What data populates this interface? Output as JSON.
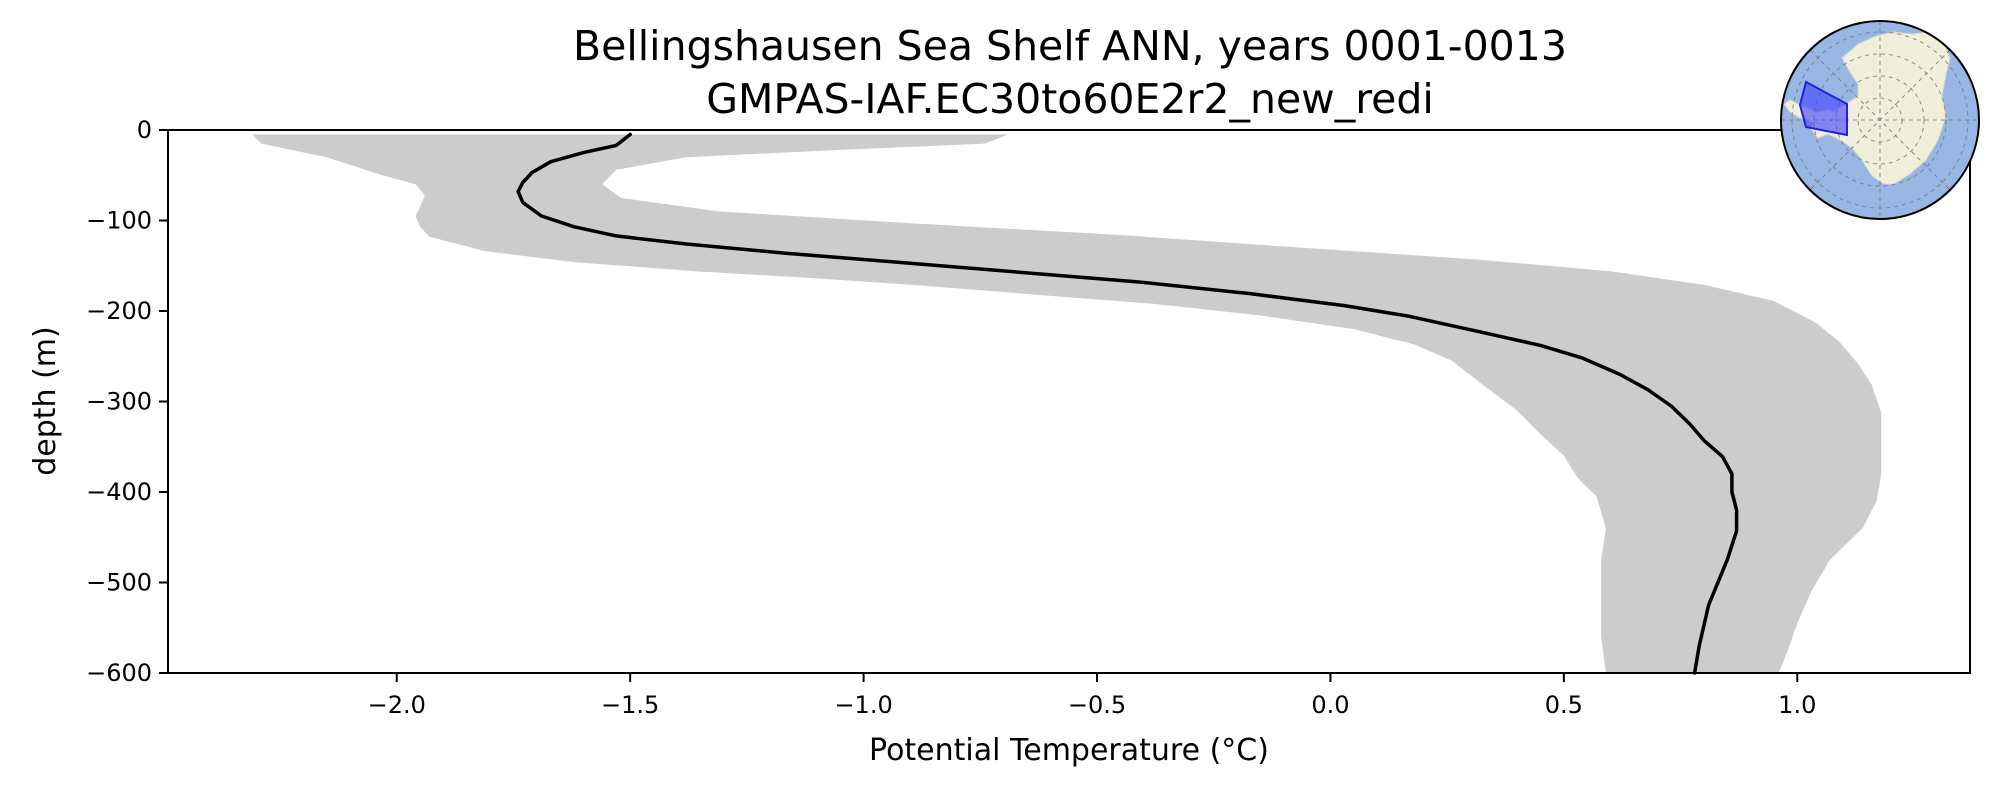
{
  "chart_data": {
    "type": "line",
    "title": "Bellingshausen Sea Shelf ANN, years 0001-0013",
    "subtitle": "GMPAS-IAF.EC30to60E2r2_new_redi",
    "xlabel": "Potential Temperature (°C)",
    "ylabel": "depth (m)",
    "xlim": [
      -2.49,
      1.37
    ],
    "ylim": [
      -600,
      0
    ],
    "x_ticks": [
      -2.0,
      -1.5,
      -1.0,
      -0.5,
      0.0,
      0.5,
      1.0
    ],
    "x_tick_labels": [
      "−2.0",
      "−1.5",
      "−1.0",
      "−0.5",
      "0.0",
      "0.5",
      "1.0"
    ],
    "y_ticks": [
      0,
      -100,
      -200,
      -300,
      -400,
      -500,
      -600
    ],
    "y_tick_labels": [
      "0",
      "−100",
      "−200",
      "−300",
      "−400",
      "−500",
      "−600"
    ],
    "grid": false,
    "legend": "none",
    "series": [
      {
        "kind": "mean-profile",
        "color": "#000000",
        "points": [
          [
            -1.5,
            -5
          ],
          [
            -1.53,
            -17
          ],
          [
            -1.6,
            -25
          ],
          [
            -1.67,
            -35
          ],
          [
            -1.71,
            -47
          ],
          [
            -1.73,
            -58
          ],
          [
            -1.74,
            -68
          ],
          [
            -1.73,
            -80
          ],
          [
            -1.69,
            -95
          ],
          [
            -1.62,
            -107
          ],
          [
            -1.53,
            -117
          ],
          [
            -1.38,
            -126
          ],
          [
            -1.17,
            -136
          ],
          [
            -0.93,
            -146
          ],
          [
            -0.67,
            -157
          ],
          [
            -0.41,
            -168
          ],
          [
            -0.17,
            -181
          ],
          [
            0.03,
            -194
          ],
          [
            0.17,
            -206
          ],
          [
            0.32,
            -223
          ],
          [
            0.45,
            -238
          ],
          [
            0.54,
            -252
          ],
          [
            0.62,
            -270
          ],
          [
            0.68,
            -287
          ],
          [
            0.73,
            -305
          ],
          [
            0.77,
            -325
          ],
          [
            0.8,
            -343
          ],
          [
            0.84,
            -361
          ],
          [
            0.86,
            -380
          ],
          [
            0.86,
            -400
          ],
          [
            0.87,
            -420
          ],
          [
            0.87,
            -443
          ],
          [
            0.85,
            -475
          ],
          [
            0.81,
            -525
          ],
          [
            0.79,
            -570
          ],
          [
            0.78,
            -600
          ]
        ]
      }
    ],
    "band": {
      "kind": "spread",
      "color": "#cccccc",
      "left": [
        [
          -2.31,
          -5
        ],
        [
          -2.29,
          -15
        ],
        [
          -2.15,
          -30
        ],
        [
          -2.03,
          -50
        ],
        [
          -1.96,
          -60
        ],
        [
          -1.94,
          -72
        ],
        [
          -1.95,
          -85
        ],
        [
          -1.96,
          -95
        ],
        [
          -1.95,
          -107
        ],
        [
          -1.93,
          -118
        ],
        [
          -1.81,
          -134
        ],
        [
          -1.62,
          -146
        ],
        [
          -1.36,
          -156
        ],
        [
          -1.1,
          -164
        ],
        [
          -0.87,
          -172
        ],
        [
          -0.63,
          -182
        ],
        [
          -0.38,
          -192
        ],
        [
          -0.15,
          -205
        ],
        [
          0.05,
          -220
        ],
        [
          0.18,
          -237
        ],
        [
          0.26,
          -255
        ],
        [
          0.32,
          -279
        ],
        [
          0.4,
          -310
        ],
        [
          0.45,
          -336
        ],
        [
          0.5,
          -360
        ],
        [
          0.53,
          -385
        ],
        [
          0.57,
          -405
        ],
        [
          0.59,
          -440
        ],
        [
          0.58,
          -475
        ],
        [
          0.58,
          -520
        ],
        [
          0.58,
          -560
        ],
        [
          0.59,
          -600
        ]
      ],
      "right": [
        [
          -0.69,
          -5
        ],
        [
          -0.74,
          -15
        ],
        [
          -1.05,
          -22
        ],
        [
          -1.38,
          -30
        ],
        [
          -1.53,
          -44
        ],
        [
          -1.56,
          -60
        ],
        [
          -1.52,
          -75
        ],
        [
          -1.31,
          -90
        ],
        [
          -0.9,
          -103
        ],
        [
          -0.45,
          -116
        ],
        [
          -0.06,
          -130
        ],
        [
          0.31,
          -143
        ],
        [
          0.6,
          -156
        ],
        [
          0.8,
          -171
        ],
        [
          0.95,
          -189
        ],
        [
          1.04,
          -213
        ],
        [
          1.09,
          -234
        ],
        [
          1.13,
          -258
        ],
        [
          1.16,
          -282
        ],
        [
          1.18,
          -313
        ],
        [
          1.18,
          -348
        ],
        [
          1.18,
          -380
        ],
        [
          1.17,
          -410
        ],
        [
          1.14,
          -440
        ],
        [
          1.07,
          -475
        ],
        [
          1.03,
          -510
        ],
        [
          1.0,
          -545
        ],
        [
          0.98,
          -575
        ],
        [
          0.96,
          -600
        ]
      ]
    }
  },
  "inset_map": {
    "kind": "south-polar-stereographic-map",
    "ocean_color": "#98b6e3",
    "land_color": "#efefdb",
    "region_color": "#4040ff"
  }
}
